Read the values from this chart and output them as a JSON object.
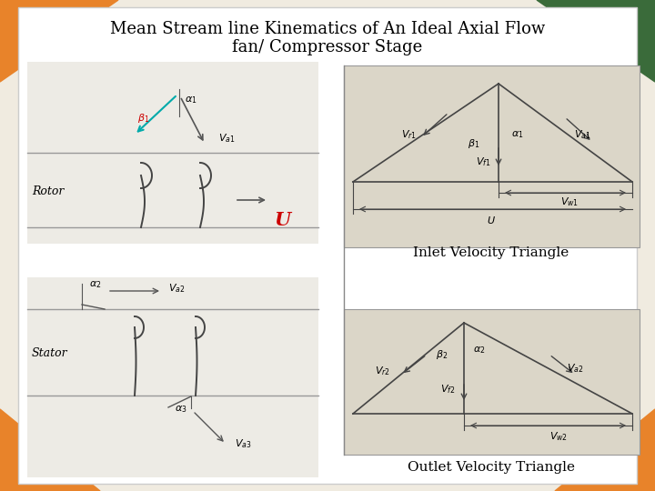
{
  "title_line1": "Mean Stream line Kinematics of An Ideal Axial Flow",
  "title_line2": "fan/ Compressor Stage",
  "bg_color": "#f0ebe0",
  "white_area": "#f5f2eb",
  "slide_white": "#eeeade",
  "triangle_color": "#555555",
  "arrow_color": "#555555",
  "red_color": "#cc0000",
  "cyan_color": "#00aaaa",
  "orange_color": "#e8832a",
  "green_color": "#3a6b3a",
  "inlet_label": "Inlet Velocity Triangle",
  "outlet_label": "Outlet Velocity Triangle",
  "rotor_label": "Rotor",
  "stator_label": "Stator",
  "title_fontsize": 13,
  "label_fontsize": 11,
  "small_fontsize": 8
}
